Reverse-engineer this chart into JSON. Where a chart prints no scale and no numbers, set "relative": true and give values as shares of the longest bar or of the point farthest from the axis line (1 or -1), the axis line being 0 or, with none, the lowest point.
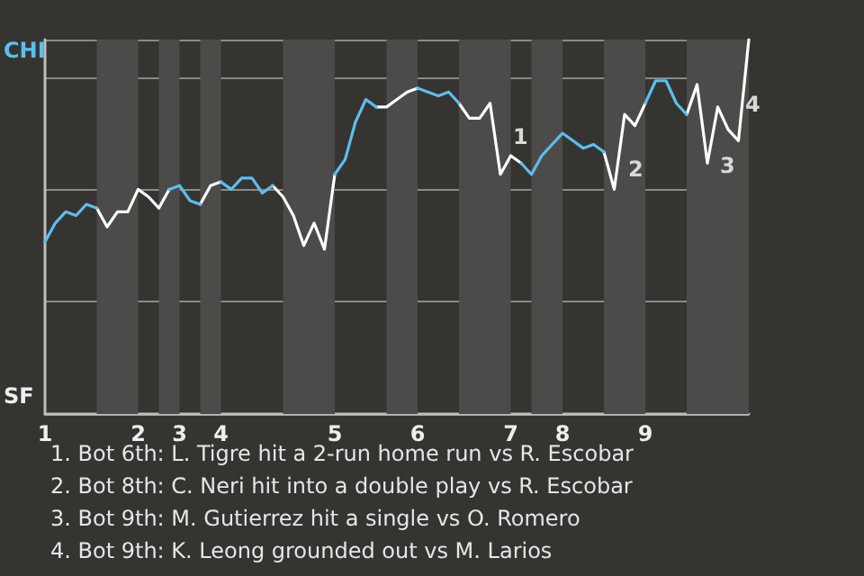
{
  "chart_data": {
    "type": "line",
    "categories": [
      "1",
      null,
      null,
      null,
      null,
      null,
      null,
      null,
      null,
      "2",
      null,
      null,
      null,
      "3",
      null,
      null,
      null,
      "4",
      null,
      null,
      null,
      null,
      null,
      null,
      null,
      null,
      null,
      null,
      "5",
      null,
      null,
      null,
      null,
      null,
      null,
      null,
      "6",
      null,
      null,
      null,
      null,
      null,
      null,
      null,
      null,
      "7",
      null,
      null,
      null,
      null,
      "8",
      null,
      null,
      null,
      null,
      null,
      null,
      null,
      "9",
      null,
      null,
      null,
      null,
      null,
      null,
      null,
      null,
      null,
      null
    ],
    "relative": true,
    "series": [
      {
        "color": "#5bbfee",
        "values": [
          0.46,
          0.51,
          0.54,
          0.53,
          0.56,
          0.55,
          null,
          null,
          null,
          null,
          null,
          null,
          0.6,
          0.61,
          0.57,
          0.56,
          null,
          0.62,
          0.6,
          0.63,
          0.63,
          0.59,
          0.61,
          null,
          null,
          null,
          null,
          null,
          0.64,
          0.68,
          0.78,
          0.84,
          0.82,
          null,
          null,
          null,
          0.87,
          0.86,
          0.85,
          0.86,
          0.83,
          null,
          null,
          null,
          null,
          null,
          0.67,
          0.64,
          0.69,
          0.72,
          0.75,
          0.73,
          0.71,
          0.72,
          0.7,
          null,
          null,
          null,
          0.83,
          0.89,
          0.89,
          0.83,
          0.8,
          null,
          null,
          null,
          null,
          null,
          null
        ]
      },
      {
        "color": "#ffffff",
        "values": [
          null,
          null,
          null,
          null,
          null,
          0.55,
          0.5,
          0.54,
          0.54,
          0.6,
          0.58,
          0.55,
          0.6,
          null,
          null,
          0.56,
          0.61,
          0.62,
          null,
          null,
          null,
          null,
          0.61,
          0.58,
          0.53,
          0.45,
          0.51,
          0.44,
          0.64,
          null,
          null,
          null,
          0.82,
          0.82,
          0.84,
          0.86,
          0.87,
          null,
          null,
          null,
          0.83,
          0.79,
          0.79,
          0.83,
          0.64,
          0.69,
          0.67,
          null,
          null,
          null,
          null,
          null,
          null,
          null,
          0.7,
          0.6,
          0.8,
          0.77,
          0.83,
          null,
          null,
          null,
          0.8,
          0.88,
          0.67,
          0.82,
          0.76,
          0.73,
          1
        ]
      }
    ],
    "grid": "y",
    "annotations": [
      "CHI",
      "SF",
      "1",
      "2",
      "3",
      "4",
      "1. Bot 6th: L. Tigre hit a 2-run home run vs R. Escobar",
      "2. Bot 8th: C. Neri hit into a double play vs R. Escobar",
      "3. Bot 9th: M. Gutierrez hit a single vs O. Romero",
      "4. Bot 9th: K. Leong grounded out vs M. Larios"
    ]
  }
}
